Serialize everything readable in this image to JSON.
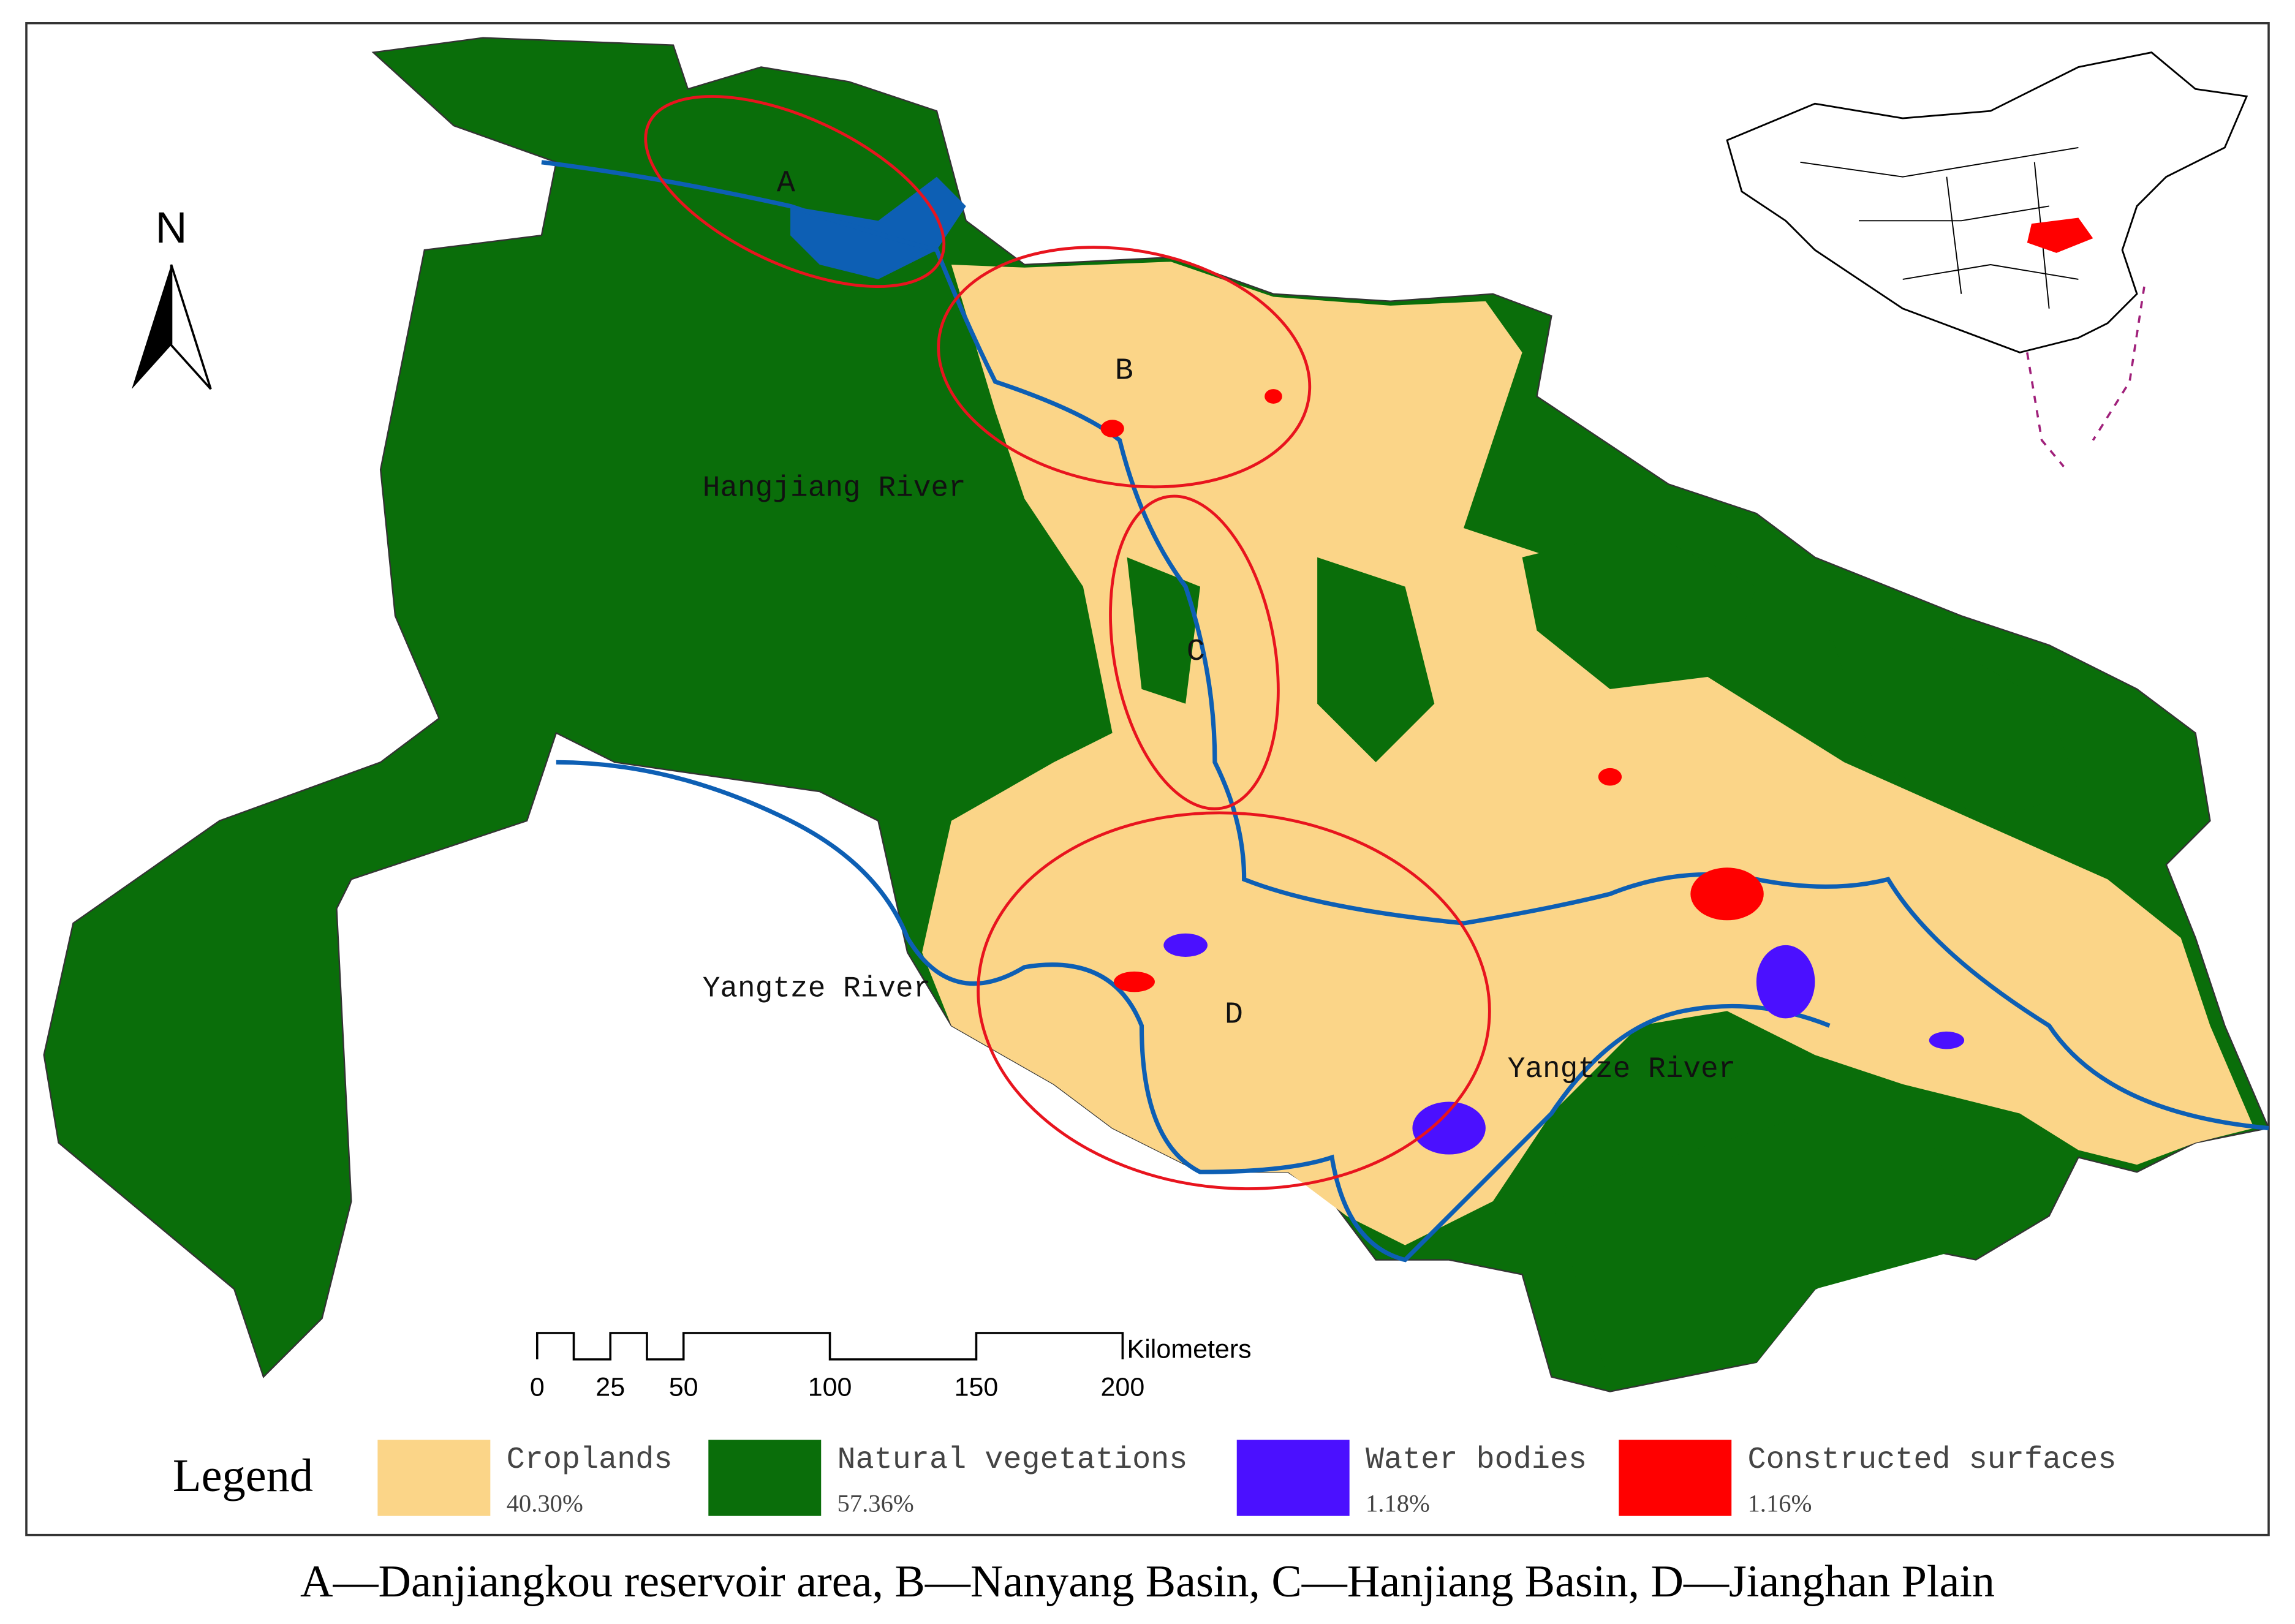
{
  "map": {
    "regions": [
      "A",
      "B",
      "C",
      "D"
    ],
    "rivers": [
      "Hangjiang River",
      "Yangtze River",
      "Yangtze River"
    ],
    "north": "N",
    "scale_bar": {
      "ticks": [
        0,
        25,
        50,
        100,
        150,
        200
      ],
      "unit": "Kilometers"
    },
    "legend": {
      "title": "Legend",
      "items": [
        {
          "name": "Croplands",
          "share": "40.30%",
          "color": "#fbd588"
        },
        {
          "name": "Natural vegetations",
          "share": "57.36%",
          "color": "#0a6e0a"
        },
        {
          "name": "Water bodies",
          "share": "1.18%",
          "color": "#4b10ff"
        },
        {
          "name": "Constructed surfaces",
          "share": "1.16%",
          "color": "#ff0000"
        }
      ]
    }
  },
  "caption": "A—Danjiangkou reservoir area, B—Nanyang Basin, C—Hanjiang Basin, D—Jianghan Plain"
}
